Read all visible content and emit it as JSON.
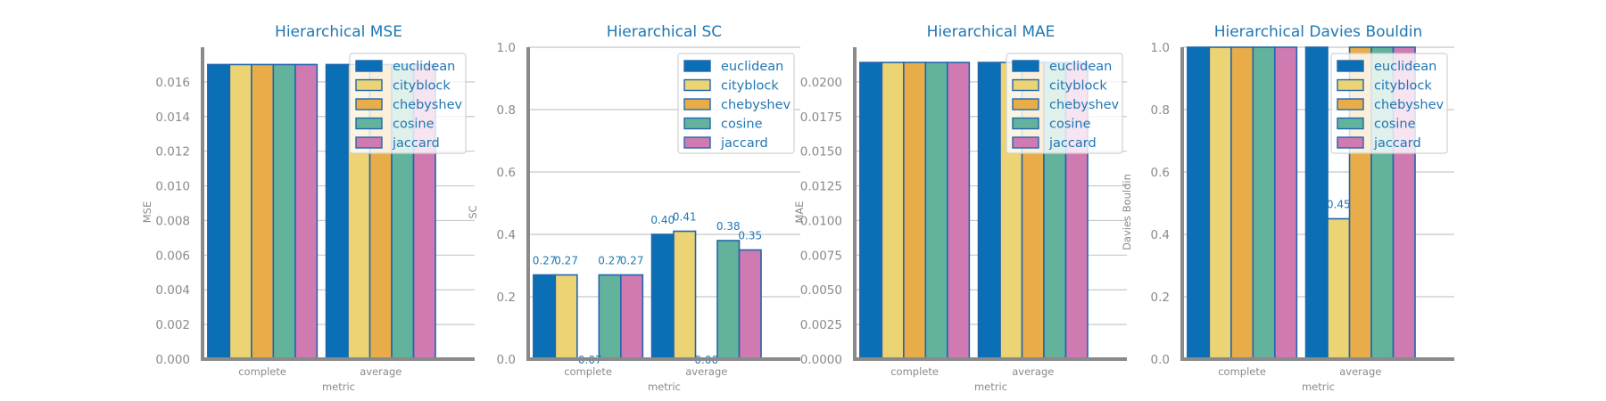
{
  "style": {
    "title_color": "#1f77b4",
    "text_color": "#1f77b4",
    "axis_color": "#8a8a8a",
    "grid_color": "#c8c8c8",
    "edge_color": "#2166ac",
    "series_colors": [
      "#0a6fb4",
      "#ecd373",
      "#e8ad48",
      "#63b39c",
      "#d07ab2"
    ]
  },
  "chart_data": [
    {
      "type": "bar",
      "title": "Hierarchical MSE",
      "xlabel": "metric",
      "ylabel": "MSE",
      "categories": [
        "complete",
        "average"
      ],
      "ylim": [
        0,
        0.018
      ],
      "yticks": [
        "0.000",
        "0.002",
        "0.004",
        "0.006",
        "0.008",
        "0.010",
        "0.012",
        "0.014",
        "0.016"
      ],
      "yticks_values": [
        0,
        0.002,
        0.004,
        0.006,
        0.008,
        0.01,
        0.012,
        0.014,
        0.016
      ],
      "grid": true,
      "legend_position": "top-right",
      "series": [
        {
          "name": "euclidean",
          "values": [
            0.017,
            0.017
          ]
        },
        {
          "name": "cityblock",
          "values": [
            0.017,
            0.017
          ]
        },
        {
          "name": "chebyshev",
          "values": [
            0.017,
            0.017
          ]
        },
        {
          "name": "cosine",
          "values": [
            0.017,
            0.017
          ]
        },
        {
          "name": "jaccard",
          "values": [
            0.017,
            0.017
          ]
        }
      ],
      "data_labels": []
    },
    {
      "type": "bar",
      "title": "Hierarchical SC",
      "xlabel": "metric",
      "ylabel": "SC",
      "categories": [
        "complete",
        "average"
      ],
      "ylim": [
        0,
        1.0
      ],
      "yticks": [
        "0.0",
        "0.2",
        "0.4",
        "0.6",
        "0.8",
        "1.0"
      ],
      "yticks_values": [
        0,
        0.2,
        0.4,
        0.6,
        0.8,
        1.0
      ],
      "grid": true,
      "legend_position": "top-right",
      "series": [
        {
          "name": "euclidean",
          "values": [
            0.27,
            0.4
          ]
        },
        {
          "name": "cityblock",
          "values": [
            0.27,
            0.41
          ]
        },
        {
          "name": "chebyshev",
          "values": [
            -0.07,
            0.0
          ]
        },
        {
          "name": "cosine",
          "values": [
            0.27,
            0.38
          ]
        },
        {
          "name": "jaccard",
          "values": [
            0.27,
            0.35
          ]
        }
      ],
      "data_labels": [
        {
          "series": 0,
          "category": 0,
          "text": "0.27"
        },
        {
          "series": 1,
          "category": 0,
          "text": "0.27"
        },
        {
          "series": 2,
          "category": 0,
          "text": "-0.07"
        },
        {
          "series": 3,
          "category": 0,
          "text": "0.27"
        },
        {
          "series": 4,
          "category": 0,
          "text": "0.27"
        },
        {
          "series": 0,
          "category": 1,
          "text": "0.40"
        },
        {
          "series": 1,
          "category": 1,
          "text": "0.41"
        },
        {
          "series": 2,
          "category": 1,
          "text": "0.00"
        },
        {
          "series": 3,
          "category": 1,
          "text": "0.38"
        },
        {
          "series": 4,
          "category": 1,
          "text": "0.35"
        }
      ]
    },
    {
      "type": "bar",
      "title": "Hierarchical MAE",
      "xlabel": "metric",
      "ylabel": "MAE",
      "categories": [
        "complete",
        "average"
      ],
      "ylim": [
        0,
        0.0225
      ],
      "yticks": [
        "0.0000",
        "0.0025",
        "0.0050",
        "0.0075",
        "0.0100",
        "0.0125",
        "0.0150",
        "0.0175",
        "0.0200"
      ],
      "yticks_values": [
        0,
        0.0025,
        0.005,
        0.0075,
        0.01,
        0.0125,
        0.015,
        0.0175,
        0.02
      ],
      "grid": true,
      "legend_position": "top-right",
      "series": [
        {
          "name": "euclidean",
          "values": [
            0.0214,
            0.0214
          ]
        },
        {
          "name": "cityblock",
          "values": [
            0.0214,
            0.0214
          ]
        },
        {
          "name": "chebyshev",
          "values": [
            0.0214,
            0.0214
          ]
        },
        {
          "name": "cosine",
          "values": [
            0.0214,
            0.0214
          ]
        },
        {
          "name": "jaccard",
          "values": [
            0.0214,
            0.0214
          ]
        }
      ],
      "data_labels": []
    },
    {
      "type": "bar",
      "title": "Hierarchical Davies Bouldin",
      "xlabel": "metric",
      "ylabel": "Davies Bouldin",
      "categories": [
        "complete",
        "average"
      ],
      "ylim": [
        0,
        1.0
      ],
      "yticks": [
        "0.0",
        "0.2",
        "0.4",
        "0.6",
        "0.8",
        "1.0"
      ],
      "yticks_values": [
        0,
        0.2,
        0.4,
        0.6,
        0.8,
        1.0
      ],
      "grid": true,
      "legend_position": "top-right",
      "series": [
        {
          "name": "euclidean",
          "values": [
            1.0,
            1.0
          ]
        },
        {
          "name": "cityblock",
          "values": [
            1.0,
            0.45
          ]
        },
        {
          "name": "chebyshev",
          "values": [
            1.0,
            1.0
          ]
        },
        {
          "name": "cosine",
          "values": [
            1.0,
            1.0
          ]
        },
        {
          "name": "jaccard",
          "values": [
            1.0,
            1.0
          ]
        }
      ],
      "data_labels": [
        {
          "series": 1,
          "category": 1,
          "text": "0.45"
        }
      ]
    }
  ]
}
